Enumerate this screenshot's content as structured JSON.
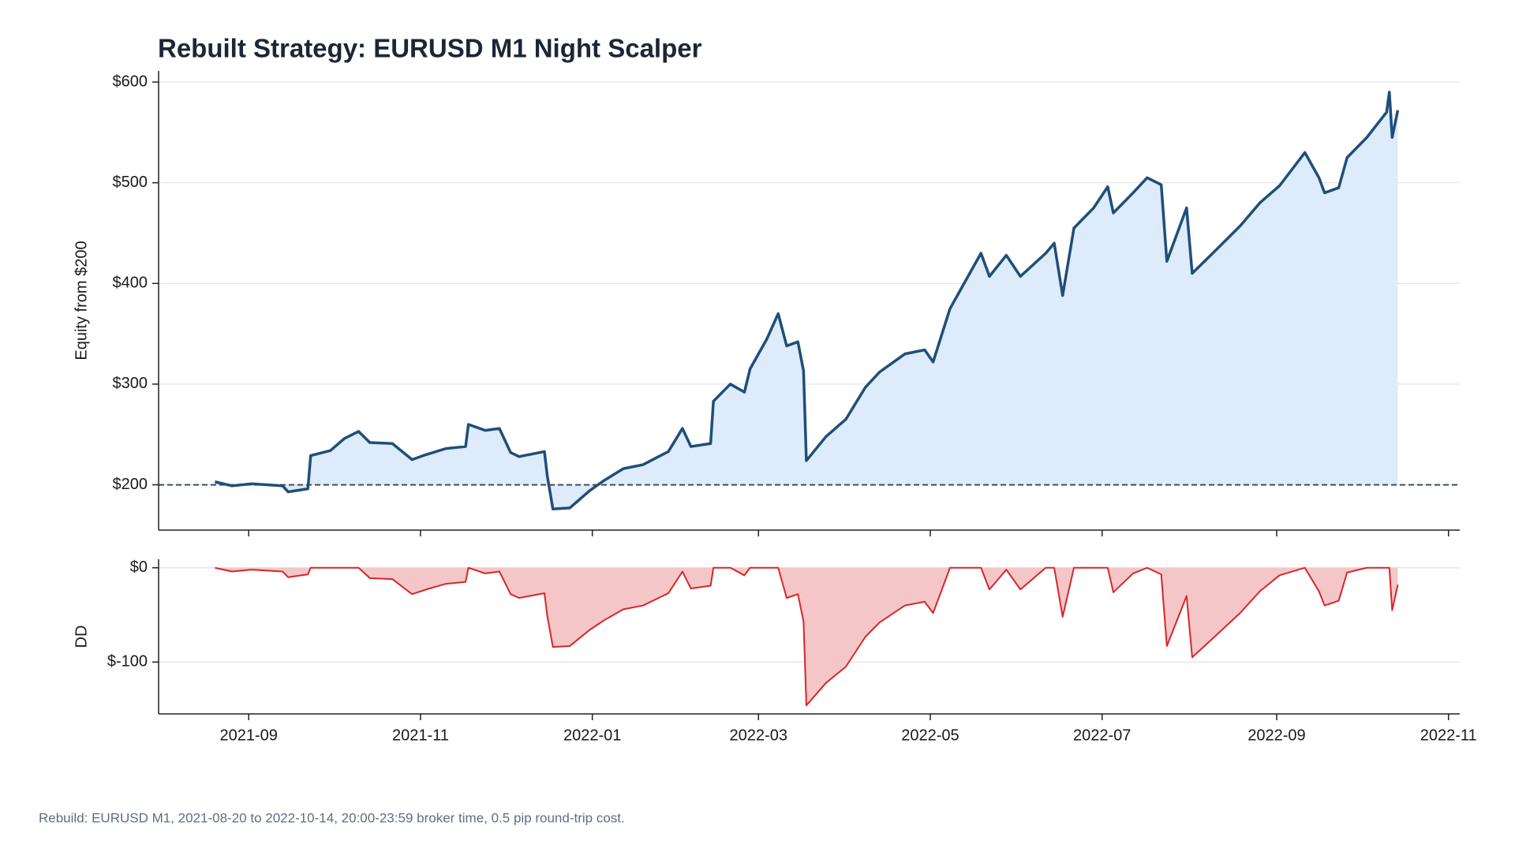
{
  "chart_data": [
    {
      "type": "line",
      "title": "Rebuilt Strategy: EURUSD M1 Night Scalper",
      "y_label": "Equity from $200",
      "x": [
        "2021-08-20",
        "2021-08-26",
        "2021-09-02",
        "2021-09-13",
        "2021-09-15",
        "2021-09-22",
        "2021-09-23",
        "2021-09-30",
        "2021-10-05",
        "2021-10-10",
        "2021-10-14",
        "2021-10-22",
        "2021-10-29",
        "2021-11-03",
        "2021-11-10",
        "2021-11-17",
        "2021-11-18",
        "2021-11-24",
        "2021-11-29",
        "2021-12-03",
        "2021-12-06",
        "2021-12-15",
        "2021-12-16",
        "2021-12-18",
        "2021-12-24",
        "2021-12-31",
        "2022-01-05",
        "2022-01-12",
        "2022-01-19",
        "2022-01-28",
        "2022-02-02",
        "2022-02-05",
        "2022-02-12",
        "2022-02-13",
        "2022-02-19",
        "2022-02-24",
        "2022-02-26",
        "2022-03-04",
        "2022-03-08",
        "2022-03-11",
        "2022-03-15",
        "2022-03-17",
        "2022-03-18",
        "2022-03-25",
        "2022-04-01",
        "2022-04-08",
        "2022-04-13",
        "2022-04-22",
        "2022-04-29",
        "2022-05-02",
        "2022-05-08",
        "2022-05-15",
        "2022-05-19",
        "2022-05-22",
        "2022-05-28",
        "2022-06-02",
        "2022-06-11",
        "2022-06-14",
        "2022-06-17",
        "2022-06-21",
        "2022-06-28",
        "2022-07-03",
        "2022-07-05",
        "2022-07-12",
        "2022-07-17",
        "2022-07-22",
        "2022-07-24",
        "2022-07-31",
        "2022-08-02",
        "2022-08-10",
        "2022-08-19",
        "2022-08-26",
        "2022-09-02",
        "2022-09-11",
        "2022-09-16",
        "2022-09-18",
        "2022-09-23",
        "2022-09-26",
        "2022-10-03",
        "2022-10-10",
        "2022-10-11",
        "2022-10-12",
        "2022-10-14"
      ],
      "series": [
        {
          "name": "Equity",
          "color": "#1f4e79",
          "fill": "#deebfa",
          "values": [
            203,
            199,
            201,
            199,
            193,
            196,
            229,
            234,
            246,
            253,
            242,
            241,
            225,
            230,
            236,
            238,
            260,
            254,
            256,
            232,
            228,
            233,
            209,
            176,
            177,
            194,
            204,
            216,
            220,
            233,
            256,
            238,
            241,
            283,
            300,
            292,
            315,
            345,
            370,
            338,
            342,
            313,
            224,
            248,
            265,
            297,
            312,
            330,
            334,
            322,
            375,
            410,
            430,
            407,
            428,
            407,
            430,
            440,
            388,
            455,
            475,
            496,
            470,
            490,
            505,
            498,
            422,
            475,
            410,
            432,
            457,
            480,
            497,
            530,
            505,
            490,
            495,
            525,
            545,
            570,
            590,
            545,
            572
          ]
        }
      ],
      "hline": 200,
      "xlim": [
        "2021-07-31",
        "2022-11-05"
      ],
      "ylim": [
        155,
        611
      ],
      "yticks": [
        {
          "value": 200,
          "label": "$200"
        },
        {
          "value": 300,
          "label": "$300"
        },
        {
          "value": 400,
          "label": "$400"
        },
        {
          "value": 500,
          "label": "$500"
        },
        {
          "value": 600,
          "label": "$600"
        }
      ],
      "grid": true
    },
    {
      "type": "line",
      "y_label": "DD",
      "x": [
        "2021-08-20",
        "2021-08-26",
        "2021-09-02",
        "2021-09-13",
        "2021-09-15",
        "2021-09-22",
        "2021-09-23",
        "2021-09-30",
        "2021-10-05",
        "2021-10-10",
        "2021-10-14",
        "2021-10-22",
        "2021-10-29",
        "2021-11-03",
        "2021-11-10",
        "2021-11-17",
        "2021-11-18",
        "2021-11-24",
        "2021-11-29",
        "2021-12-03",
        "2021-12-06",
        "2021-12-15",
        "2021-12-16",
        "2021-12-18",
        "2021-12-24",
        "2021-12-31",
        "2022-01-05",
        "2022-01-12",
        "2022-01-19",
        "2022-01-28",
        "2022-02-02",
        "2022-02-05",
        "2022-02-12",
        "2022-02-13",
        "2022-02-19",
        "2022-02-24",
        "2022-02-26",
        "2022-03-04",
        "2022-03-08",
        "2022-03-11",
        "2022-03-15",
        "2022-03-17",
        "2022-03-18",
        "2022-03-25",
        "2022-04-01",
        "2022-04-08",
        "2022-04-13",
        "2022-04-22",
        "2022-04-29",
        "2022-05-02",
        "2022-05-08",
        "2022-05-15",
        "2022-05-19",
        "2022-05-22",
        "2022-05-28",
        "2022-06-02",
        "2022-06-11",
        "2022-06-14",
        "2022-06-17",
        "2022-06-21",
        "2022-06-28",
        "2022-07-03",
        "2022-07-05",
        "2022-07-12",
        "2022-07-17",
        "2022-07-22",
        "2022-07-24",
        "2022-07-31",
        "2022-08-02",
        "2022-08-10",
        "2022-08-19",
        "2022-08-26",
        "2022-09-02",
        "2022-09-11",
        "2022-09-16",
        "2022-09-18",
        "2022-09-23",
        "2022-09-26",
        "2022-10-03",
        "2022-10-10",
        "2022-10-11",
        "2022-10-12",
        "2022-10-14"
      ],
      "series": [
        {
          "name": "Drawdown",
          "color": "#d62728",
          "fill": "#f5c6c8",
          "values": [
            0,
            -4,
            -2,
            -4,
            -10,
            -7,
            0,
            0,
            0,
            0,
            -11,
            -12,
            -28,
            -23,
            -17,
            -15,
            0,
            -6,
            -4,
            -28,
            -32,
            -27,
            -51,
            -84,
            -83,
            -66,
            -56,
            -44,
            -40,
            -27,
            -4,
            -22,
            -19,
            0,
            0,
            -8,
            0,
            0,
            0,
            -32,
            -28,
            -57,
            -146,
            -122,
            -105,
            -73,
            -58,
            -40,
            -36,
            -48,
            0,
            0,
            0,
            -23,
            -2,
            -23,
            0,
            0,
            -52,
            0,
            0,
            0,
            -26,
            -6,
            0,
            -7,
            -83,
            -30,
            -95,
            -73,
            -48,
            -25,
            -8,
            0,
            -25,
            -40,
            -35,
            -5,
            0,
            0,
            0,
            -45,
            -18
          ]
        }
      ],
      "xlim": [
        "2021-07-31",
        "2022-11-05"
      ],
      "ylim": [
        -155,
        9
      ],
      "yticks": [
        {
          "value": -100,
          "label": "$-100"
        },
        {
          "value": 0,
          "label": "$0"
        }
      ],
      "xticks": [
        "2021-09",
        "2021-11",
        "2022-01",
        "2022-03",
        "2022-05",
        "2022-07",
        "2022-09",
        "2022-11"
      ],
      "grid": true
    }
  ],
  "footnote": "Rebuild: EURUSD M1, 2021-08-20 to 2022-10-14, 20:00-23:59 broker time, 0.5 pip round-trip cost."
}
